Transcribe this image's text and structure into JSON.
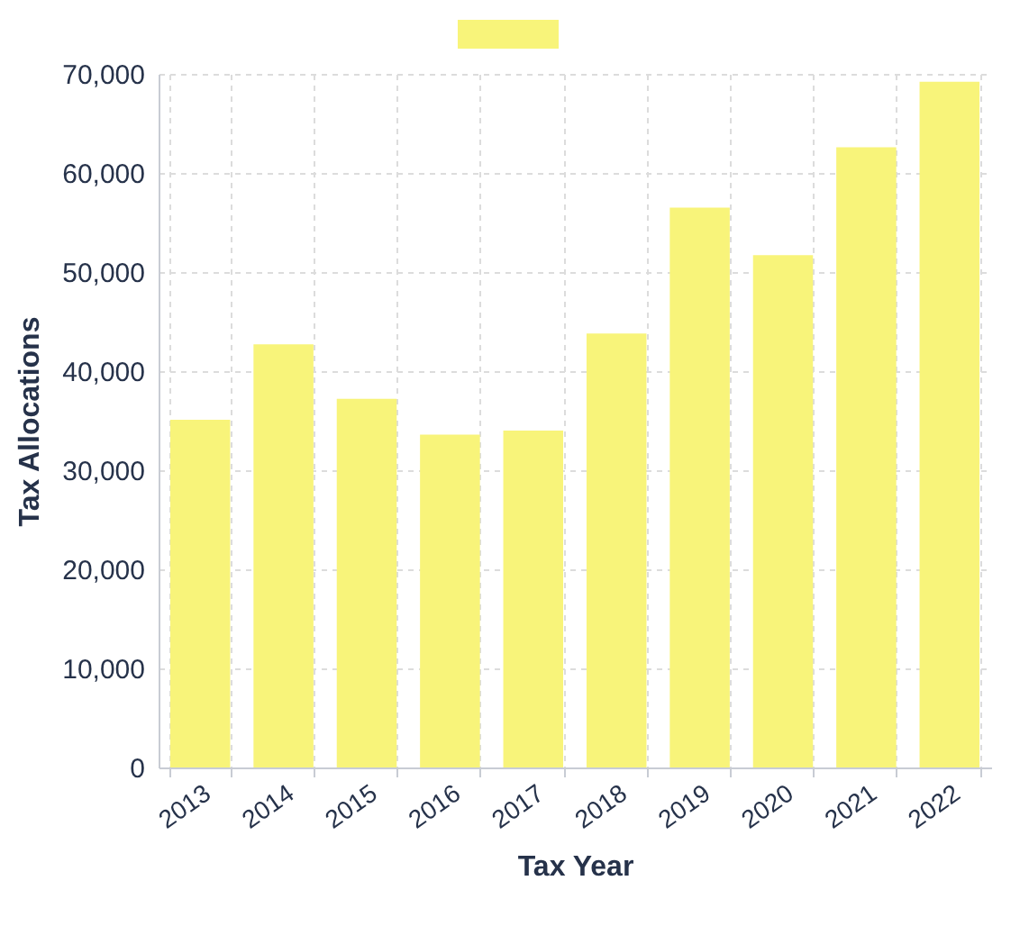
{
  "chart_data": {
    "type": "bar",
    "xlabel": "Tax Year",
    "ylabel": "Tax Allocations",
    "categories": [
      "2013",
      "2014",
      "2015",
      "2016",
      "2017",
      "2018",
      "2019",
      "2020",
      "2021",
      "2022"
    ],
    "series": [
      {
        "color": "#f8f47a",
        "values": [
          35100,
          42700,
          37200,
          33600,
          34000,
          43800,
          56500,
          51700,
          62600,
          69200
        ]
      }
    ],
    "ylim": [
      0,
      70000
    ],
    "yticks": [
      0,
      {
        "value": 10000,
        "label": "10,000"
      },
      {
        "value": 20000,
        "label": "20,000"
      },
      {
        "value": 30000,
        "label": "30,000"
      },
      {
        "value": 40000,
        "label": "40,000"
      },
      {
        "value": 50000,
        "label": "50,000"
      },
      {
        "value": 60000,
        "label": "60,000"
      },
      {
        "value": 70000,
        "label": "70,000"
      }
    ],
    "grid": true
  }
}
